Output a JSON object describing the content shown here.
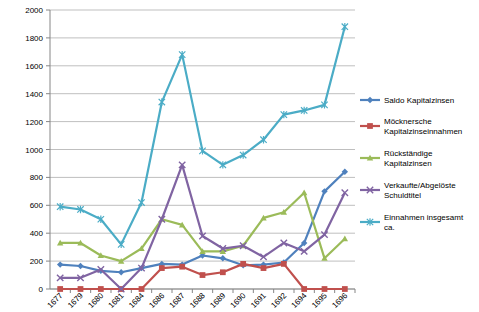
{
  "chart_data": {
    "type": "line",
    "categories": [
      "1677",
      "1679",
      "1680",
      "1681",
      "1684",
      "1686",
      "1687",
      "1688",
      "1689",
      "1690",
      "1691",
      "1692",
      "1694",
      "1695",
      "1696"
    ],
    "ylim": [
      0,
      2000
    ],
    "yticks": [
      0,
      200,
      400,
      600,
      800,
      1000,
      1200,
      1400,
      1600,
      1800,
      2000
    ],
    "grid": true,
    "legend": "right",
    "series": [
      {
        "name": "Saldo Kapitalzinsen",
        "color": "#4f81bd",
        "marker": "diamond",
        "values": [
          175,
          165,
          130,
          120,
          150,
          180,
          175,
          240,
          220,
          170,
          175,
          190,
          330,
          700,
          840
        ]
      },
      {
        "name": "Möcknersche Kapitalzinseinnahmen",
        "color": "#c0504d",
        "marker": "square",
        "values": [
          0,
          0,
          0,
          0,
          0,
          150,
          160,
          100,
          120,
          180,
          150,
          180,
          0,
          0,
          0
        ]
      },
      {
        "name": "Rückständige Kapitalzinsen",
        "color": "#9bbb59",
        "marker": "triangle",
        "values": [
          330,
          330,
          240,
          200,
          290,
          500,
          460,
          270,
          270,
          310,
          510,
          550,
          690,
          220,
          360
        ]
      },
      {
        "name": "Verkaufte/Abgelöste Schuldtitel",
        "color": "#8064a2",
        "marker": "x",
        "values": [
          80,
          80,
          140,
          0,
          150,
          500,
          890,
          380,
          290,
          310,
          230,
          330,
          270,
          390,
          690
        ]
      },
      {
        "name": "Einnahmen insgesamt ca.",
        "color": "#4bacc6",
        "marker": "star",
        "values": [
          590,
          570,
          500,
          320,
          620,
          1340,
          1680,
          990,
          890,
          960,
          1070,
          1250,
          1280,
          1320,
          1880
        ]
      }
    ]
  }
}
